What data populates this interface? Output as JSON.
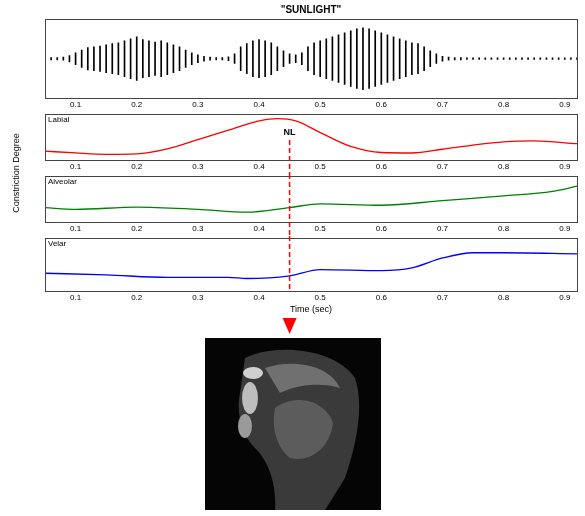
{
  "chart_data": [
    {
      "type": "waveform",
      "title": "\"SUNLIGHT\"",
      "color": "#000000",
      "grid": false,
      "tick_labels": "x",
      "xlim": [
        0.05,
        0.92
      ],
      "xticks": [
        0.1,
        0.2,
        0.3,
        0.4,
        0.5,
        0.6,
        0.7,
        0.8,
        0.9
      ],
      "ylim": [
        -1,
        1
      ],
      "x": [
        0.05,
        0.06,
        0.07,
        0.08,
        0.09,
        0.1,
        0.11,
        0.12,
        0.13,
        0.14,
        0.15,
        0.16,
        0.17,
        0.18,
        0.19,
        0.2,
        0.21,
        0.22,
        0.23,
        0.24,
        0.25,
        0.26,
        0.27,
        0.28,
        0.29,
        0.3,
        0.31,
        0.32,
        0.33,
        0.34,
        0.35,
        0.36,
        0.37,
        0.38,
        0.39,
        0.4,
        0.41,
        0.42,
        0.43,
        0.44,
        0.45,
        0.46,
        0.47,
        0.48,
        0.49,
        0.5,
        0.51,
        0.52,
        0.53,
        0.54,
        0.55,
        0.56,
        0.57,
        0.58,
        0.59,
        0.6,
        0.61,
        0.62,
        0.63,
        0.64,
        0.65,
        0.66,
        0.67,
        0.68,
        0.69,
        0.7,
        0.71,
        0.72,
        0.73,
        0.74,
        0.75,
        0.76,
        0.77,
        0.78,
        0.79,
        0.8,
        0.81,
        0.82,
        0.83,
        0.84,
        0.85,
        0.86,
        0.87,
        0.88,
        0.89,
        0.9,
        0.91,
        0.92
      ],
      "upper": [
        0.02,
        0.03,
        0.03,
        0.04,
        0.08,
        0.15,
        0.22,
        0.28,
        0.3,
        0.32,
        0.35,
        0.38,
        0.4,
        0.45,
        0.5,
        0.55,
        0.48,
        0.45,
        0.42,
        0.45,
        0.4,
        0.35,
        0.3,
        0.22,
        0.15,
        0.1,
        0.06,
        0.04,
        0.03,
        0.03,
        0.05,
        0.12,
        0.3,
        0.38,
        0.45,
        0.48,
        0.45,
        0.4,
        0.3,
        0.2,
        0.12,
        0.1,
        0.15,
        0.3,
        0.4,
        0.45,
        0.5,
        0.55,
        0.6,
        0.65,
        0.7,
        0.75,
        0.78,
        0.75,
        0.7,
        0.65,
        0.6,
        0.55,
        0.5,
        0.45,
        0.4,
        0.38,
        0.3,
        0.2,
        0.12,
        0.06,
        0.04,
        0.03,
        0.03,
        0.02,
        0.02,
        0.02,
        0.02,
        0.02,
        0.02,
        0.02,
        0.02,
        0.02,
        0.02,
        0.02,
        0.02,
        0.02,
        0.02,
        0.02,
        0.02,
        0.02,
        0.02,
        0.02
      ],
      "lower": [
        -0.02,
        -0.03,
        -0.03,
        -0.04,
        -0.08,
        -0.15,
        -0.22,
        -0.28,
        -0.3,
        -0.32,
        -0.35,
        -0.38,
        -0.4,
        -0.45,
        -0.5,
        -0.55,
        -0.48,
        -0.45,
        -0.42,
        -0.45,
        -0.4,
        -0.35,
        -0.3,
        -0.22,
        -0.15,
        -0.1,
        -0.06,
        -0.04,
        -0.03,
        -0.03,
        -0.05,
        -0.12,
        -0.3,
        -0.38,
        -0.45,
        -0.48,
        -0.45,
        -0.4,
        -0.3,
        -0.2,
        -0.12,
        -0.1,
        -0.15,
        -0.3,
        -0.4,
        -0.45,
        -0.5,
        -0.55,
        -0.6,
        -0.65,
        -0.7,
        -0.75,
        -0.78,
        -0.75,
        -0.7,
        -0.65,
        -0.6,
        -0.55,
        -0.5,
        -0.45,
        -0.4,
        -0.38,
        -0.3,
        -0.2,
        -0.12,
        -0.06,
        -0.04,
        -0.03,
        -0.03,
        -0.02,
        -0.02,
        -0.02,
        -0.02,
        -0.02,
        -0.02,
        -0.02,
        -0.02,
        -0.02,
        -0.02,
        -0.02,
        -0.02,
        -0.02,
        -0.02,
        -0.02,
        -0.02,
        -0.02,
        -0.02,
        -0.02
      ]
    },
    {
      "type": "line",
      "title": "Labial",
      "ylabel": "Constriction Degree",
      "color": "#ff0000",
      "grid": false,
      "tick_labels": "x",
      "xlim": [
        0.05,
        0.92
      ],
      "xticks": [
        0.1,
        0.2,
        0.3,
        0.4,
        0.5,
        0.6,
        0.7,
        0.8,
        0.9
      ],
      "ylim": [
        0,
        1
      ],
      "x": [
        0.05,
        0.1,
        0.15,
        0.2,
        0.25,
        0.3,
        0.35,
        0.4,
        0.43,
        0.46,
        0.5,
        0.55,
        0.6,
        0.65,
        0.7,
        0.75,
        0.8,
        0.85,
        0.92
      ],
      "values": [
        0.2,
        0.16,
        0.13,
        0.14,
        0.25,
        0.45,
        0.65,
        0.85,
        0.9,
        0.85,
        0.6,
        0.3,
        0.17,
        0.16,
        0.24,
        0.33,
        0.4,
        0.42,
        0.36
      ],
      "annotations": [
        {
          "text": "NL",
          "x": 0.45,
          "color": "#ff0000",
          "line_style": "dashed"
        }
      ]
    },
    {
      "type": "line",
      "title": "Alveolar",
      "color": "#008000",
      "grid": false,
      "tick_labels": "x",
      "xlim": [
        0.05,
        0.92
      ],
      "xticks": [
        0.1,
        0.2,
        0.3,
        0.4,
        0.5,
        0.6,
        0.7,
        0.8,
        0.9
      ],
      "ylim": [
        0,
        1
      ],
      "x": [
        0.05,
        0.1,
        0.2,
        0.3,
        0.38,
        0.45,
        0.5,
        0.6,
        0.7,
        0.8,
        0.88,
        0.92
      ],
      "values": [
        0.32,
        0.28,
        0.33,
        0.28,
        0.22,
        0.32,
        0.4,
        0.37,
        0.47,
        0.57,
        0.67,
        0.78
      ]
    },
    {
      "type": "line",
      "title": "Velar",
      "xlabel": "Time (sec)",
      "color": "#0000ff",
      "grid": false,
      "tick_labels": "x",
      "xlim": [
        0.05,
        0.92
      ],
      "xticks": [
        0.1,
        0.2,
        0.3,
        0.4,
        0.5,
        0.6,
        0.7,
        0.8,
        0.9
      ],
      "ylim": [
        0,
        1
      ],
      "x": [
        0.05,
        0.15,
        0.25,
        0.35,
        0.38,
        0.45,
        0.5,
        0.6,
        0.65,
        0.7,
        0.75,
        0.8,
        0.92
      ],
      "values": [
        0.33,
        0.3,
        0.25,
        0.25,
        0.23,
        0.28,
        0.4,
        0.38,
        0.43,
        0.62,
        0.72,
        0.72,
        0.7
      ]
    }
  ]
}
